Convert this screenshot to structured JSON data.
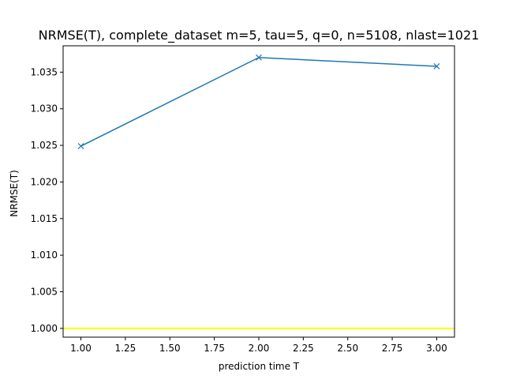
{
  "chart_data": {
    "type": "line",
    "title": "NRMSE(T), complete_dataset m=5, tau=5, q=0, n=5108, nlast=1021",
    "xlabel": "prediction time T",
    "ylabel": "NRMSE(T)",
    "xlim": [
      0.9,
      3.1
    ],
    "ylim": [
      0.9988,
      1.0386
    ],
    "xticks": [
      1.0,
      1.25,
      1.5,
      1.75,
      2.0,
      2.25,
      2.5,
      2.75,
      3.0
    ],
    "xtick_labels": [
      "1.00",
      "1.25",
      "1.50",
      "1.75",
      "2.00",
      "2.25",
      "2.50",
      "2.75",
      "3.00"
    ],
    "yticks": [
      1.0,
      1.005,
      1.01,
      1.015,
      1.02,
      1.025,
      1.03,
      1.035
    ],
    "ytick_labels": [
      "1.000",
      "1.005",
      "1.010",
      "1.015",
      "1.020",
      "1.025",
      "1.030",
      "1.035"
    ],
    "grid": false,
    "series": [
      {
        "x": [
          1,
          2,
          3
        ],
        "y": [
          1.0249,
          1.037,
          1.0358
        ],
        "color": "#1f77b4",
        "marker": "x"
      }
    ],
    "reference_line": {
      "y": 1.0,
      "color": "#ffff00"
    }
  }
}
